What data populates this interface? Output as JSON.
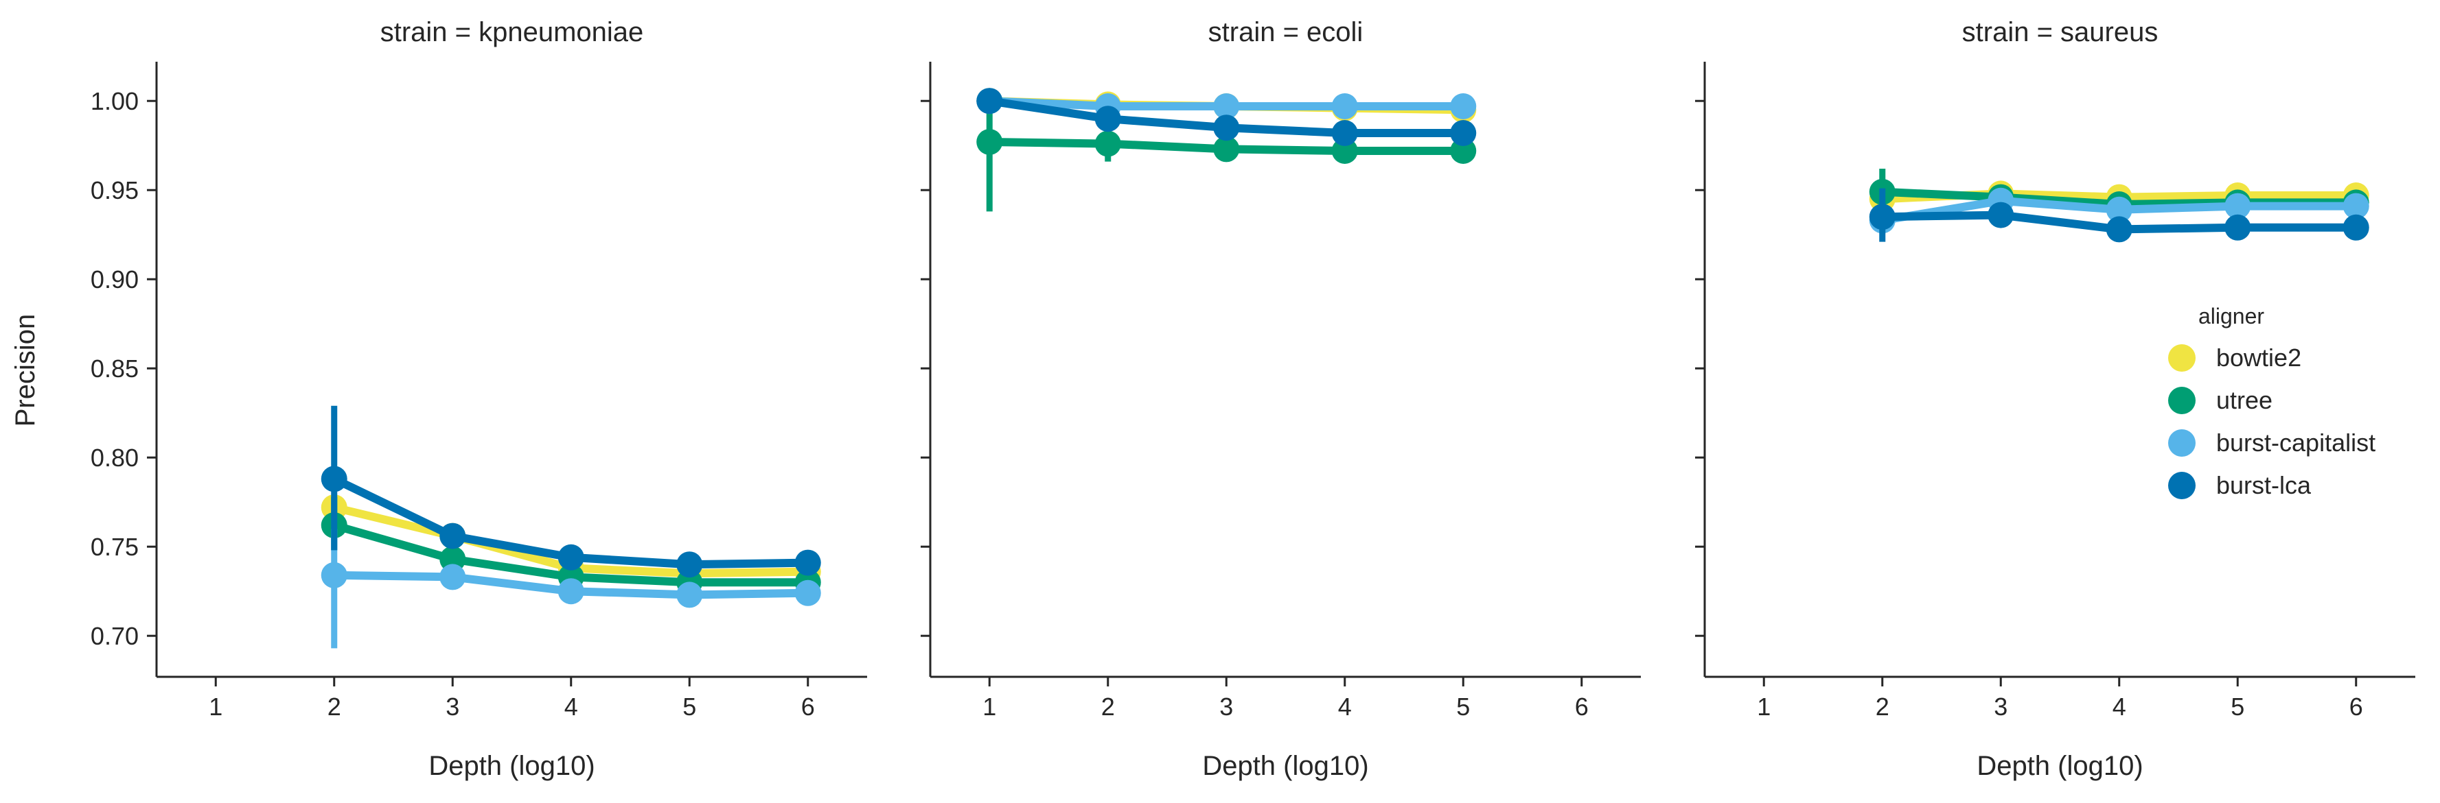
{
  "chart_data": {
    "type": "line",
    "subplot_titles": [
      "strain = kpneumoniae",
      "strain = ecoli",
      "strain = saureus"
    ],
    "xlabel": "Depth (log10)",
    "ylabel": "Precision",
    "x_ticks": [
      1,
      2,
      3,
      4,
      5,
      6
    ],
    "x_tick_labels": [
      "1",
      "2",
      "3",
      "4",
      "5",
      "6"
    ],
    "xlim": [
      0.5,
      6.5
    ],
    "y_ticks": [
      0.7,
      0.75,
      0.8,
      0.85,
      0.9,
      0.95,
      1.0
    ],
    "y_tick_labels": [
      "0.70",
      "0.75",
      "0.80",
      "0.85",
      "0.90",
      "0.95",
      "1.00"
    ],
    "ylim": [
      0.677,
      1.022
    ],
    "grid": false,
    "legend": {
      "title": "aligner",
      "placement": "center-right",
      "entries": [
        "bowtie2",
        "utree",
        "burst-capitalist",
        "burst-lca"
      ]
    },
    "colors": {
      "bowtie2": "#f0e442",
      "utree": "#009e73",
      "burst-capitalist": "#56b4e9",
      "burst-lca": "#0072b2",
      "axis": "#262626"
    },
    "panels": [
      {
        "strain": "kpneumoniae",
        "series": [
          {
            "name": "bowtie2",
            "x": [
              2,
              3,
              4,
              5,
              6
            ],
            "values": [
              0.772,
              0.756,
              0.738,
              0.735,
              0.736
            ],
            "ci": [
              null,
              null,
              null,
              null,
              null
            ]
          },
          {
            "name": "utree",
            "x": [
              2,
              3,
              4,
              5,
              6
            ],
            "values": [
              0.762,
              0.743,
              0.733,
              0.73,
              0.73
            ],
            "ci": [
              [
                0.748,
                0.778
              ],
              null,
              null,
              null,
              null
            ]
          },
          {
            "name": "burst-capitalist",
            "x": [
              2,
              3,
              4,
              5,
              6
            ],
            "values": [
              0.734,
              0.733,
              0.725,
              0.723,
              0.724
            ],
            "ci": [
              [
                0.693,
                0.76
              ],
              null,
              null,
              null,
              null
            ]
          },
          {
            "name": "burst-lca",
            "x": [
              2,
              3,
              4,
              5,
              6
            ],
            "values": [
              0.788,
              0.756,
              0.744,
              0.74,
              0.741
            ],
            "ci": [
              [
                0.748,
                0.829
              ],
              null,
              null,
              null,
              null
            ]
          }
        ]
      },
      {
        "strain": "ecoli",
        "series": [
          {
            "name": "bowtie2",
            "x": [
              1,
              2,
              3,
              4,
              5
            ],
            "values": [
              1.0,
              0.998,
              0.997,
              0.996,
              0.995
            ],
            "ci": [
              null,
              null,
              null,
              null,
              null
            ]
          },
          {
            "name": "utree",
            "x": [
              1,
              2,
              3,
              4,
              5
            ],
            "values": [
              0.977,
              0.976,
              0.973,
              0.972,
              0.972
            ],
            "ci": [
              [
                0.938,
                1.0
              ],
              [
                0.966,
                0.985
              ],
              null,
              null,
              null
            ]
          },
          {
            "name": "burst-capitalist",
            "x": [
              1,
              2,
              3,
              4,
              5
            ],
            "values": [
              1.0,
              0.997,
              0.997,
              0.997,
              0.997
            ],
            "ci": [
              null,
              null,
              null,
              null,
              null
            ]
          },
          {
            "name": "burst-lca",
            "x": [
              1,
              2,
              3,
              4,
              5
            ],
            "values": [
              1.0,
              0.99,
              0.985,
              0.982,
              0.982
            ],
            "ci": [
              null,
              null,
              null,
              null,
              null
            ]
          }
        ]
      },
      {
        "strain": "saureus",
        "series": [
          {
            "name": "bowtie2",
            "x": [
              2,
              3,
              4,
              5,
              6
            ],
            "values": [
              0.945,
              0.948,
              0.946,
              0.947,
              0.947
            ],
            "ci": [
              null,
              null,
              null,
              null,
              null
            ]
          },
          {
            "name": "utree",
            "x": [
              2,
              3,
              4,
              5,
              6
            ],
            "values": [
              0.949,
              0.946,
              0.942,
              0.943,
              0.943
            ],
            "ci": [
              [
                0.937,
                0.962
              ],
              null,
              null,
              null,
              null
            ]
          },
          {
            "name": "burst-capitalist",
            "x": [
              2,
              3,
              4,
              5,
              6
            ],
            "values": [
              0.933,
              0.944,
              0.939,
              0.941,
              0.941
            ],
            "ci": [
              null,
              null,
              null,
              null,
              null
            ]
          },
          {
            "name": "burst-lca",
            "x": [
              2,
              3,
              4,
              5,
              6
            ],
            "values": [
              0.935,
              0.936,
              0.928,
              0.929,
              0.929
            ],
            "ci": [
              [
                0.921,
                0.951
              ],
              null,
              null,
              null,
              null
            ]
          }
        ]
      }
    ]
  }
}
